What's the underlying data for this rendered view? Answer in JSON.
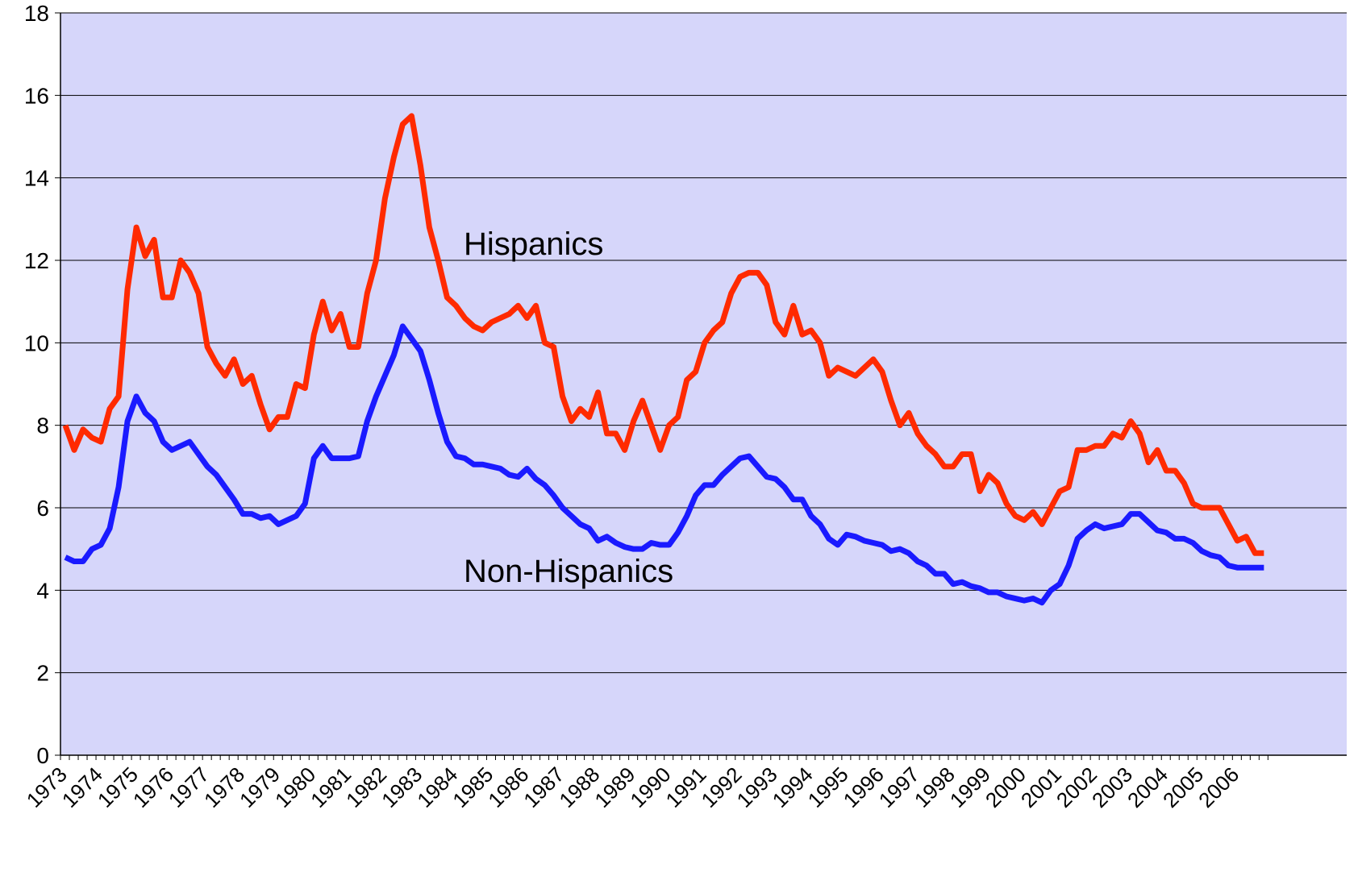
{
  "chart_data": {
    "type": "line",
    "categories": [
      "1973",
      null,
      null,
      null,
      "1974",
      null,
      null,
      null,
      "1975",
      null,
      null,
      null,
      "1976",
      null,
      null,
      null,
      "1977",
      null,
      null,
      null,
      "1978",
      null,
      null,
      null,
      "1979",
      null,
      null,
      null,
      "1980",
      null,
      null,
      null,
      "1981",
      null,
      null,
      null,
      "1982",
      null,
      null,
      null,
      "1983",
      null,
      null,
      null,
      "1984",
      null,
      null,
      null,
      "1985",
      null,
      null,
      null,
      "1986",
      null,
      null,
      null,
      "1987",
      null,
      null,
      null,
      "1988",
      null,
      null,
      null,
      "1989",
      null,
      null,
      null,
      "1990",
      null,
      null,
      null,
      "1991",
      null,
      null,
      null,
      "1992",
      null,
      null,
      null,
      "1993",
      null,
      null,
      null,
      "1994",
      null,
      null,
      null,
      "1995",
      null,
      null,
      null,
      "1996",
      null,
      null,
      null,
      "1997",
      null,
      null,
      null,
      "1998",
      null,
      null,
      null,
      "1999",
      null,
      null,
      null,
      "2000",
      null,
      null,
      null,
      "2001",
      null,
      null,
      null,
      "2002",
      null,
      null,
      null,
      "2003",
      null,
      null,
      null,
      "2004",
      null,
      null,
      null,
      "2005",
      null,
      null,
      null,
      "2006",
      null,
      null,
      null
    ],
    "series": [
      {
        "color": "#ff2a00",
        "values": [
          8.0,
          7.4,
          7.9,
          7.7,
          7.6,
          8.4,
          8.7,
          11.3,
          12.8,
          12.1,
          12.5,
          11.1,
          11.1,
          12.0,
          11.7,
          11.2,
          9.9,
          9.5,
          9.2,
          9.6,
          9.0,
          9.2,
          8.5,
          7.9,
          8.2,
          8.2,
          9.0,
          8.9,
          10.2,
          11.0,
          10.3,
          10.7,
          9.9,
          9.9,
          11.2,
          12.0,
          13.5,
          14.5,
          15.3,
          15.5,
          14.3,
          12.8,
          12.0,
          11.1,
          10.9,
          10.6,
          10.4,
          10.3,
          10.5,
          10.6,
          10.7,
          10.9,
          10.6,
          10.9,
          10.0,
          9.9,
          8.7,
          8.1,
          8.4,
          8.2,
          8.8,
          7.8,
          7.8,
          7.4,
          8.1,
          8.6,
          8.0,
          7.4,
          8.0,
          8.2,
          9.1,
          9.3,
          10.0,
          10.3,
          10.5,
          11.2,
          11.6,
          11.7,
          11.7,
          11.4,
          10.5,
          10.2,
          10.9,
          10.2,
          10.3,
          10.0,
          9.2,
          9.4,
          9.3,
          9.2,
          9.4,
          9.6,
          9.3,
          8.6,
          8.0,
          8.3,
          7.8,
          7.5,
          7.3,
          7.0,
          7.0,
          7.3,
          7.3,
          6.4,
          6.8,
          6.6,
          6.1,
          5.8,
          5.7,
          5.9,
          5.6,
          6.0,
          6.4,
          6.5,
          7.4,
          7.4,
          7.5,
          7.5,
          7.8,
          7.7,
          8.1,
          7.8,
          7.1,
          7.4,
          6.9,
          6.9,
          6.6,
          6.1,
          6.0,
          6.0,
          6.0,
          5.6,
          5.2,
          5.3,
          4.9,
          4.9
        ]
      },
      {
        "color": "#1a1aff",
        "values": [
          4.8,
          4.7,
          4.7,
          5.0,
          5.1,
          5.5,
          6.5,
          8.1,
          8.7,
          8.3,
          8.1,
          7.6,
          7.4,
          7.5,
          7.6,
          7.3,
          7.0,
          6.8,
          6.5,
          6.2,
          5.85,
          5.85,
          5.75,
          5.8,
          5.6,
          5.7,
          5.8,
          6.1,
          7.2,
          7.5,
          7.2,
          7.2,
          7.2,
          7.25,
          8.1,
          8.7,
          9.2,
          9.7,
          10.4,
          10.1,
          9.8,
          9.1,
          8.3,
          7.6,
          7.25,
          7.2,
          7.05,
          7.05,
          7.0,
          6.95,
          6.8,
          6.75,
          6.95,
          6.7,
          6.55,
          6.3,
          6.0,
          5.8,
          5.6,
          5.5,
          5.2,
          5.3,
          5.15,
          5.05,
          5.0,
          5.0,
          5.15,
          5.1,
          5.1,
          5.4,
          5.8,
          6.3,
          6.55,
          6.55,
          6.8,
          7.0,
          7.2,
          7.25,
          7.0,
          6.75,
          6.7,
          6.5,
          6.2,
          6.2,
          5.8,
          5.6,
          5.25,
          5.1,
          5.35,
          5.3,
          5.2,
          5.15,
          5.1,
          4.95,
          5.0,
          4.9,
          4.7,
          4.6,
          4.4,
          4.4,
          4.15,
          4.2,
          4.1,
          4.05,
          3.95,
          3.95,
          3.85,
          3.8,
          3.75,
          3.8,
          3.7,
          4.0,
          4.15,
          4.6,
          5.25,
          5.45,
          5.6,
          5.5,
          5.55,
          5.6,
          5.85,
          5.85,
          5.65,
          5.45,
          5.4,
          5.25,
          5.25,
          5.15,
          4.95,
          4.85,
          4.8,
          4.6,
          4.55,
          4.55,
          4.55,
          4.55
        ]
      }
    ],
    "annotations": [
      "Hispanics",
      "Non-Hispanics"
    ],
    "ylim": [
      0,
      18
    ],
    "yticks": [
      0,
      2,
      4,
      6,
      8,
      10,
      12,
      14,
      16,
      18
    ],
    "grid": true,
    "background": "#d6d6fa"
  }
}
